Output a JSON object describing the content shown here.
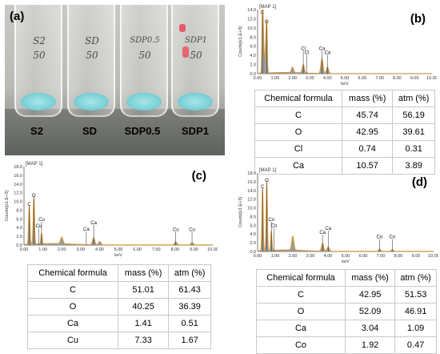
{
  "panel_a": {
    "letter": "(a)",
    "samples": [
      {
        "label": "S2",
        "handwriting": [
          "S2",
          "50"
        ],
        "red": false
      },
      {
        "label": "SD",
        "handwriting": [
          "SD",
          "50"
        ],
        "red": false
      },
      {
        "label": "SDP0.5",
        "handwriting": [
          "SDP0.5",
          "50"
        ],
        "red": false
      },
      {
        "label": "SDP1",
        "handwriting": [
          "SDP1",
          "50"
        ],
        "red": true
      }
    ]
  },
  "spectrum_map_label": "MAP 1",
  "spectrum_ylabel": "Counts[x1.E+3]",
  "spectrum_xlabel": "keV",
  "table_headers": [
    "Chemical formula",
    "mass (%)",
    "atm (%)"
  ],
  "accent_colors": {
    "spectrum_fill": "#9a9a9a",
    "spectrum_line": "#e0942a"
  },
  "chart_data": [
    {
      "panel": "(b)",
      "type": "area",
      "ylim": [
        0,
        14.0
      ],
      "xlim": [
        0,
        10
      ],
      "yticks": [
        "0.0",
        "2.0",
        "4.0",
        "6.0",
        "8.0",
        "10.0",
        "12.0",
        "14.0"
      ],
      "xticks": [
        "0.00",
        "1.00",
        "2.00",
        "3.00",
        "4.00",
        "5.00",
        "6.00",
        "7.00",
        "8.00",
        "9.00",
        "10.00"
      ],
      "peaks": [
        [
          0.28,
          13.0
        ],
        [
          0.52,
          11.0
        ],
        [
          0.34,
          6.0
        ],
        [
          0.45,
          4.5
        ],
        [
          2.0,
          1.2
        ],
        [
          2.62,
          1.8
        ],
        [
          3.69,
          3.2
        ],
        [
          4.01,
          1.4
        ]
      ],
      "peak_labels": [
        {
          "text": "C",
          "x": 0.28,
          "y": 13.0
        },
        {
          "text": "O",
          "x": 0.52,
          "y": 11.0
        },
        {
          "text": "Cl",
          "x": 2.62,
          "y": 5.2
        },
        {
          "text": "Cl",
          "x": 2.82,
          "y": 4.3
        },
        {
          "text": "Ca",
          "x": 3.69,
          "y": 5.2
        },
        {
          "text": "Ca",
          "x": 4.01,
          "y": 4.3
        }
      ],
      "table": [
        [
          "C",
          "45.74",
          "56.19"
        ],
        [
          "O",
          "42.95",
          "39.61"
        ],
        [
          "Cl",
          "0.74",
          "0.31"
        ],
        [
          "Ca",
          "10.57",
          "3.89"
        ]
      ]
    },
    {
      "panel": "(c)",
      "type": "area",
      "ylim": [
        0,
        18.0
      ],
      "xlim": [
        0,
        10
      ],
      "yticks": [
        "0.0",
        "2.0",
        "4.0",
        "6.0",
        "8.0",
        "10.0",
        "12.0",
        "14.0",
        "16.0",
        "18.0"
      ],
      "xticks": [
        "0.00",
        "1.00",
        "2.00",
        "3.00",
        "4.00",
        "5.00",
        "6.00",
        "7.00",
        "8.00",
        "9.00",
        "10.00"
      ],
      "peaks": [
        [
          0.28,
          9.0
        ],
        [
          0.52,
          11.0
        ],
        [
          0.93,
          2.5
        ],
        [
          2.0,
          1.5
        ],
        [
          3.69,
          1.6
        ],
        [
          4.01,
          0.8
        ],
        [
          8.04,
          0.7
        ],
        [
          8.9,
          0.5
        ]
      ],
      "peak_labels": [
        {
          "text": "C",
          "x": 0.28,
          "y": 9.0
        },
        {
          "text": "O",
          "x": 0.52,
          "y": 11.0
        },
        {
          "text": "Cu",
          "x": 0.93,
          "y": 5.5
        },
        {
          "text": "Cu",
          "x": 0.78,
          "y": 4.0
        },
        {
          "text": "Ca",
          "x": 3.69,
          "y": 4.8
        },
        {
          "text": "Ca",
          "x": 3.3,
          "y": 3.3
        },
        {
          "text": "Cu",
          "x": 8.04,
          "y": 3.2
        },
        {
          "text": "Cu",
          "x": 8.9,
          "y": 3.2
        }
      ],
      "table": [
        [
          "C",
          "51.01",
          "61.43"
        ],
        [
          "O",
          "40.25",
          "36.39"
        ],
        [
          "Ca",
          "1.41",
          "0.51"
        ],
        [
          "Cu",
          "7.33",
          "1.67"
        ]
      ]
    },
    {
      "panel": "(d)",
      "type": "area",
      "ylim": [
        0,
        18.0
      ],
      "xlim": [
        0,
        10
      ],
      "yticks": [
        "0.0",
        "2.0",
        "4.0",
        "6.0",
        "8.0",
        "10.0",
        "12.0",
        "14.0",
        "16.0",
        "18.0"
      ],
      "xticks": [
        "0.00",
        "1.00",
        "2.00",
        "3.00",
        "4.00",
        "5.00",
        "6.00",
        "7.00",
        "8.00",
        "9.00",
        "10.00"
      ],
      "peaks": [
        [
          0.28,
          14.5
        ],
        [
          0.52,
          16.0
        ],
        [
          0.78,
          4.5
        ],
        [
          2.0,
          3.2
        ],
        [
          3.69,
          1.8
        ],
        [
          4.01,
          1.0
        ],
        [
          6.93,
          0.5
        ],
        [
          7.65,
          0.4
        ]
      ],
      "peak_labels": [
        {
          "text": "C",
          "x": 0.28,
          "y": 14.5
        },
        {
          "text": "O",
          "x": 0.52,
          "y": 16.0
        },
        {
          "text": "Co",
          "x": 0.78,
          "y": 7.0
        },
        {
          "text": "Co",
          "x": 0.93,
          "y": 5.6
        },
        {
          "text": "Ca",
          "x": 3.69,
          "y": 4.0
        },
        {
          "text": "Ca",
          "x": 4.01,
          "y": 5.0
        },
        {
          "text": "Co",
          "x": 6.93,
          "y": 3.0
        },
        {
          "text": "Co",
          "x": 7.65,
          "y": 3.0
        }
      ],
      "table": [
        [
          "C",
          "42.95",
          "51.53"
        ],
        [
          "O",
          "52.09",
          "46.91"
        ],
        [
          "Ca",
          "3.04",
          "1.09"
        ],
        [
          "Co",
          "1.92",
          "0.47"
        ]
      ]
    }
  ]
}
